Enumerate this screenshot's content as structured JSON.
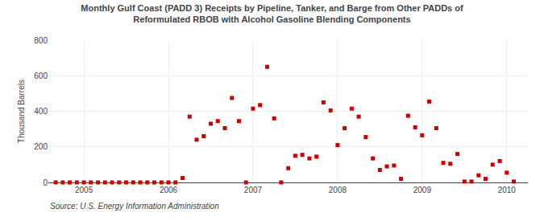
{
  "chart_data": {
    "type": "scatter",
    "title": "Monthly Gulf Coast (PADD 3) Receipts by Pipeline, Tanker, and Barge from Other PADDs of",
    "subtitle": "Reformulated RBOB with Alcohol Gasoline Blending Components",
    "y_label": "Thousand Barrels",
    "annotations": [
      "Source: U.S. Energy Information Administration"
    ],
    "color": "#cc0000",
    "marker": "square",
    "grid": true,
    "xlim": [
      2004.58,
      2010.25
    ],
    "xticks": [
      2005,
      2006,
      2007,
      2008,
      2009,
      2010
    ],
    "ylim": [
      0,
      800
    ],
    "yticks": [
      0,
      200,
      400,
      600,
      800
    ],
    "x": [
      2004.667,
      2004.75,
      2004.833,
      2004.917,
      2005.0,
      2005.083,
      2005.167,
      2005.25,
      2005.333,
      2005.417,
      2005.5,
      2005.583,
      2005.667,
      2005.75,
      2005.833,
      2005.917,
      2006.0,
      2006.083,
      2006.167,
      2006.25,
      2006.333,
      2006.417,
      2006.5,
      2006.583,
      2006.667,
      2006.75,
      2006.833,
      2006.917,
      2007.0,
      2007.083,
      2007.167,
      2007.25,
      2007.333,
      2007.417,
      2007.5,
      2007.583,
      2007.667,
      2007.75,
      2007.833,
      2007.917,
      2008.0,
      2008.083,
      2008.167,
      2008.25,
      2008.333,
      2008.417,
      2008.5,
      2008.583,
      2008.667,
      2008.75,
      2008.833,
      2008.917,
      2009.0,
      2009.083,
      2009.167,
      2009.25,
      2009.333,
      2009.417,
      2009.5,
      2009.583,
      2009.667,
      2009.75,
      2009.833,
      2009.917,
      2010.0,
      2010.083
    ],
    "values": [
      0,
      0,
      0,
      0,
      0,
      0,
      0,
      0,
      0,
      0,
      0,
      0,
      0,
      0,
      0,
      0,
      0,
      0,
      25,
      370,
      240,
      260,
      330,
      345,
      305,
      475,
      345,
      0,
      415,
      435,
      650,
      360,
      0,
      80,
      150,
      155,
      135,
      145,
      450,
      405,
      210,
      305,
      415,
      370,
      255,
      135,
      70,
      90,
      95,
      20,
      375,
      310,
      265,
      455,
      305,
      110,
      105,
      160,
      5,
      5,
      40,
      20,
      100,
      120,
      55,
      5
    ]
  }
}
